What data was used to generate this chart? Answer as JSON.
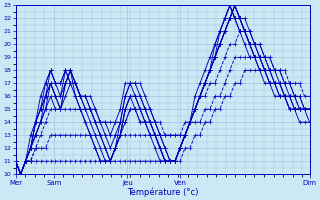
{
  "title": "",
  "xlabel": "Température (°c)",
  "bg_color": "#cce8f4",
  "plot_bg_color": "#cce8f4",
  "line_color": "#0000bb",
  "grid_color": "#99bbdd",
  "ylim": [
    10,
    23
  ],
  "yticks": [
    10,
    11,
    12,
    13,
    14,
    15,
    16,
    17,
    18,
    19,
    20,
    21,
    22,
    23
  ],
  "day_labels": [
    "Mer",
    "Sam",
    "Jeu",
    "Ven",
    "Dim"
  ],
  "day_positions": [
    0.0,
    0.13,
    0.38,
    0.56,
    1.0
  ],
  "figsize": [
    3.2,
    2.0
  ],
  "dpi": 100,
  "series": [
    {
      "y": [
        11,
        10,
        11,
        13,
        14,
        15,
        16,
        17,
        16,
        15,
        17,
        18,
        16,
        15,
        14,
        13,
        12,
        11,
        11,
        11,
        12,
        13,
        15,
        16,
        15,
        15,
        14,
        13,
        13,
        12,
        11,
        11,
        11,
        12,
        13,
        14,
        15,
        16,
        17,
        18,
        19,
        20,
        21,
        22,
        23,
        22,
        21,
        21,
        20,
        20,
        19,
        19,
        18,
        18,
        17,
        17,
        16,
        16,
        15,
        15
      ],
      "ls": "solid"
    },
    {
      "y": [
        11,
        10,
        11,
        12,
        13,
        14,
        15,
        16,
        15,
        15,
        16,
        17,
        16,
        15,
        14,
        13,
        12,
        11,
        11,
        11,
        12,
        13,
        14,
        15,
        15,
        14,
        14,
        13,
        12,
        11,
        11,
        11,
        11,
        12,
        13,
        14,
        15,
        16,
        17,
        18,
        19,
        20,
        21,
        22,
        23,
        22,
        21,
        20,
        19,
        19,
        18,
        17,
        17,
        16,
        16,
        15,
        15,
        14,
        14,
        14
      ],
      "ls": "solid"
    },
    {
      "y": [
        11,
        10,
        11,
        12,
        13,
        14,
        15,
        17,
        16,
        15,
        17,
        18,
        17,
        16,
        15,
        14,
        13,
        12,
        11,
        11,
        12,
        13,
        15,
        16,
        16,
        15,
        14,
        14,
        13,
        12,
        11,
        11,
        11,
        12,
        13,
        14,
        15,
        16,
        17,
        18,
        19,
        20,
        21,
        22,
        23,
        22,
        22,
        21,
        20,
        19,
        19,
        18,
        18,
        17,
        17,
        16,
        16,
        15,
        15,
        15
      ],
      "ls": "solid"
    },
    {
      "y": [
        11,
        10,
        11,
        12,
        13,
        14,
        16,
        17,
        16,
        16,
        17,
        18,
        17,
        16,
        15,
        15,
        14,
        13,
        12,
        11,
        12,
        13,
        15,
        16,
        16,
        15,
        15,
        14,
        13,
        12,
        11,
        11,
        11,
        12,
        13,
        14,
        15,
        16,
        17,
        18,
        19,
        20,
        21,
        22,
        23,
        22,
        21,
        20,
        20,
        19,
        18,
        18,
        17,
        17,
        16,
        16,
        15,
        15,
        15,
        15
      ],
      "ls": "solid"
    },
    {
      "y": [
        11,
        10,
        11,
        12,
        14,
        15,
        16,
        18,
        17,
        16,
        18,
        18,
        17,
        16,
        16,
        15,
        14,
        13,
        12,
        11,
        12,
        14,
        16,
        17,
        16,
        16,
        15,
        14,
        13,
        12,
        11,
        11,
        11,
        12,
        13,
        14,
        15,
        16,
        17,
        18,
        19,
        21,
        22,
        23,
        22,
        22,
        21,
        20,
        19,
        19,
        18,
        18,
        17,
        17,
        16,
        16,
        15,
        15,
        15,
        15
      ],
      "ls": "solid"
    },
    {
      "y": [
        11,
        10,
        11,
        12,
        14,
        15,
        17,
        18,
        17,
        17,
        18,
        17,
        17,
        16,
        16,
        15,
        15,
        14,
        13,
        12,
        13,
        14,
        16,
        17,
        17,
        16,
        15,
        15,
        14,
        13,
        12,
        11,
        11,
        12,
        13,
        14,
        15,
        16,
        17,
        18,
        20,
        21,
        22,
        23,
        22,
        21,
        21,
        20,
        19,
        18,
        18,
        17,
        17,
        16,
        16,
        15,
        15,
        15,
        15,
        14
      ],
      "ls": "solid"
    },
    {
      "y": [
        11,
        10,
        11,
        12,
        14,
        16,
        17,
        18,
        17,
        17,
        18,
        17,
        17,
        16,
        16,
        16,
        15,
        14,
        14,
        13,
        14,
        15,
        17,
        17,
        17,
        17,
        16,
        15,
        14,
        13,
        12,
        11,
        11,
        12,
        13,
        14,
        16,
        17,
        18,
        19,
        20,
        21,
        22,
        23,
        22,
        21,
        20,
        19,
        19,
        18,
        17,
        17,
        16,
        16,
        16,
        15,
        15,
        15,
        15,
        15
      ],
      "ls": "solid"
    },
    {
      "y": [
        11,
        10,
        11,
        11,
        11,
        11,
        11,
        11,
        11,
        11,
        11,
        11,
        11,
        11,
        11,
        11,
        11,
        11,
        11,
        11,
        11,
        11,
        11,
        11,
        11,
        11,
        11,
        11,
        11,
        11,
        11,
        11,
        11,
        11,
        12,
        12,
        13,
        13,
        14,
        14,
        15,
        15,
        16,
        16,
        17,
        17,
        18,
        18,
        18,
        18,
        18,
        17,
        17,
        17,
        16,
        16,
        16,
        15,
        15,
        15
      ],
      "ls": "dashed"
    },
    {
      "y": [
        11,
        10,
        11,
        11,
        12,
        12,
        12,
        13,
        13,
        13,
        13,
        13,
        13,
        13,
        13,
        13,
        13,
        13,
        13,
        13,
        13,
        13,
        13,
        13,
        13,
        13,
        13,
        13,
        13,
        13,
        13,
        13,
        13,
        13,
        13,
        14,
        14,
        14,
        15,
        15,
        16,
        16,
        17,
        18,
        19,
        19,
        19,
        19,
        19,
        19,
        19,
        18,
        18,
        18,
        18,
        17,
        17,
        17,
        16,
        16
      ],
      "ls": "dashed"
    },
    {
      "y": [
        11,
        10,
        11,
        11,
        12,
        13,
        14,
        15,
        15,
        15,
        15,
        15,
        15,
        15,
        15,
        15,
        14,
        14,
        14,
        14,
        14,
        14,
        14,
        15,
        15,
        14,
        14,
        14,
        14,
        14,
        13,
        13,
        13,
        13,
        14,
        14,
        15,
        16,
        16,
        17,
        17,
        18,
        19,
        20,
        20,
        21,
        21,
        20,
        20,
        20,
        19,
        19,
        18,
        18,
        17,
        17,
        16,
        16,
        15,
        15
      ],
      "ls": "dashed"
    }
  ]
}
